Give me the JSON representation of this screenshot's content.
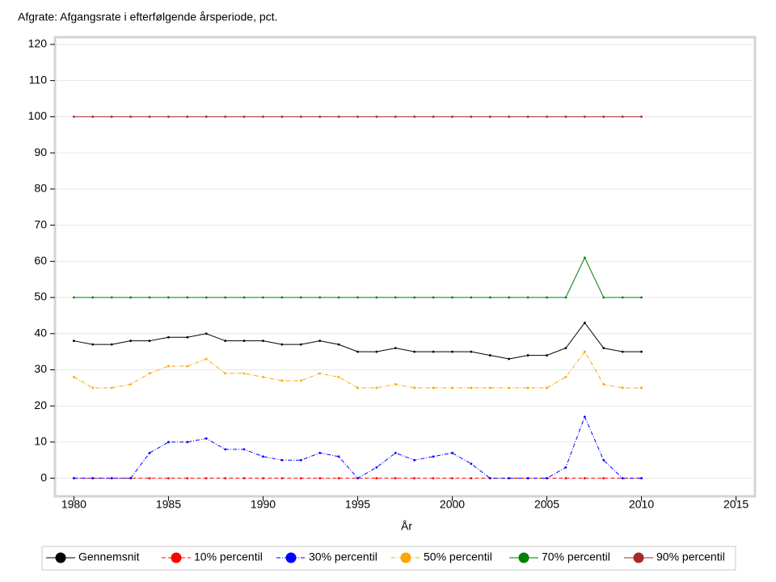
{
  "chart_data": {
    "type": "line",
    "title": "Afgrate: Afgangsrate i efterfølgende årsperiode, pct.",
    "x_label": "År",
    "x": [
      1980,
      1981,
      1982,
      1983,
      1984,
      1985,
      1986,
      1987,
      1988,
      1989,
      1990,
      1991,
      1992,
      1993,
      1994,
      1995,
      1996,
      1997,
      1998,
      1999,
      2000,
      2001,
      2002,
      2003,
      2004,
      2005,
      2006,
      2007,
      2008,
      2009,
      2010
    ],
    "xlim": [
      1979,
      2016
    ],
    "xticks": [
      1980,
      1985,
      1990,
      1995,
      2000,
      2005,
      2010,
      2015
    ],
    "ylim": [
      -5,
      122
    ],
    "yticks": [
      0,
      10,
      20,
      30,
      40,
      50,
      60,
      70,
      80,
      90,
      100,
      110,
      120
    ],
    "grid": true,
    "legend": "bottom",
    "series": [
      {
        "name": "Gennemsnit",
        "color": "#000000",
        "style": "solid",
        "values": [
          38,
          37,
          37,
          38,
          38,
          39,
          39,
          40,
          38,
          38,
          38,
          37,
          37,
          38,
          37,
          35,
          35,
          36,
          35,
          35,
          35,
          35,
          34,
          33,
          34,
          34,
          36,
          43,
          36,
          35,
          35
        ]
      },
      {
        "name": "10% percentil",
        "color": "#ff0000",
        "style": "dashed",
        "values": [
          0,
          0,
          0,
          0,
          0,
          0,
          0,
          0,
          0,
          0,
          0,
          0,
          0,
          0,
          0,
          0,
          0,
          0,
          0,
          0,
          0,
          0,
          0,
          0,
          0,
          0,
          0,
          0,
          0,
          0,
          0
        ]
      },
      {
        "name": "30% percentil",
        "color": "#0000ff",
        "style": "dashdot",
        "values": [
          0,
          0,
          0,
          0,
          7,
          10,
          10,
          11,
          8,
          8,
          6,
          5,
          5,
          7,
          6,
          0,
          3,
          7,
          5,
          6,
          7,
          4,
          0,
          0,
          0,
          0,
          3,
          17,
          5,
          0,
          0
        ]
      },
      {
        "name": "50% percentil",
        "color": "#ffa500",
        "style": "dashdot",
        "values": [
          28,
          25,
          25,
          26,
          29,
          31,
          31,
          33,
          29,
          29,
          28,
          27,
          27,
          29,
          28,
          25,
          25,
          26,
          25,
          25,
          25,
          25,
          25,
          25,
          25,
          25,
          28,
          35,
          26,
          25,
          25
        ]
      },
      {
        "name": "70% percentil",
        "color": "#008000",
        "style": "solid",
        "values": [
          50,
          50,
          50,
          50,
          50,
          50,
          50,
          50,
          50,
          50,
          50,
          50,
          50,
          50,
          50,
          50,
          50,
          50,
          50,
          50,
          50,
          50,
          50,
          50,
          50,
          50,
          50,
          61,
          50,
          50,
          50
        ]
      },
      {
        "name": "90% percentil",
        "color": "#a52a2a",
        "style": "solid",
        "values": [
          100,
          100,
          100,
          100,
          100,
          100,
          100,
          100,
          100,
          100,
          100,
          100,
          100,
          100,
          100,
          100,
          100,
          100,
          100,
          100,
          100,
          100,
          100,
          100,
          100,
          100,
          100,
          100,
          100,
          100,
          100
        ]
      }
    ]
  }
}
